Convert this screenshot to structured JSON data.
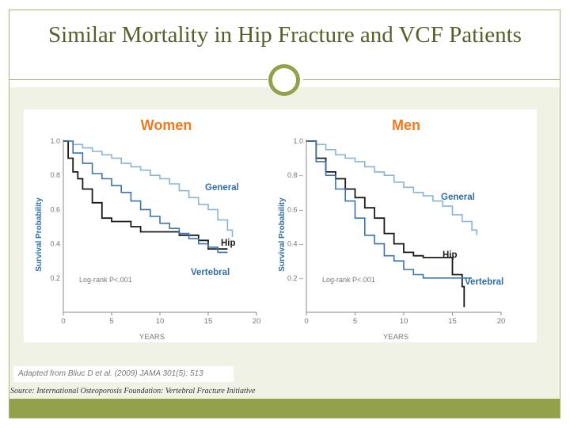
{
  "slide": {
    "title": "Similar Mortality in Hip Fracture and VCF Patients",
    "citation": "Adapted from Bliuc D et al. (2009) JAMA 301(5): 513",
    "source": "Source: International Osteoporosis Foundation: Vertebral Fracture Initiative"
  },
  "colors": {
    "olive": "#93a24a",
    "title": "#56602a",
    "panel_title": "#f07a1d",
    "general": "#8ab4d6",
    "vertebral": "#3b73b0",
    "hip": "#1a1a1a",
    "label_blue": "#2f6ea8"
  },
  "chart_data": [
    {
      "type": "line",
      "title": "Women",
      "xlabel": "YEARS",
      "ylabel": "Survival Probability",
      "xlim": [
        0,
        20
      ],
      "ylim": [
        0,
        1.0
      ],
      "xticks": [
        0,
        5,
        10,
        15,
        20
      ],
      "yticks": [
        0.2,
        0.4,
        0.6,
        0.8,
        1.0
      ],
      "ytick_labels": [
        "0.2",
        "0.4",
        "0.6",
        "0.8",
        "1.0"
      ],
      "annotation": "Log-rank P<.001",
      "series": [
        {
          "name": "General",
          "step": true,
          "x": [
            0,
            1,
            2,
            3,
            4,
            5,
            6,
            7,
            8,
            9,
            10,
            11,
            12,
            13,
            14,
            15,
            16,
            17,
            17.5
          ],
          "y": [
            1.0,
            0.98,
            0.96,
            0.94,
            0.92,
            0.9,
            0.87,
            0.85,
            0.83,
            0.8,
            0.78,
            0.75,
            0.71,
            0.67,
            0.63,
            0.6,
            0.54,
            0.48,
            0.44
          ]
        },
        {
          "name": "Hip",
          "step": true,
          "x": [
            0,
            0.5,
            1,
            1.5,
            2,
            3,
            4,
            5,
            6,
            7,
            8,
            9,
            10,
            11,
            12,
            13,
            14,
            15,
            16,
            17
          ],
          "y": [
            1.0,
            0.9,
            0.82,
            0.78,
            0.72,
            0.64,
            0.55,
            0.53,
            0.53,
            0.5,
            0.47,
            0.47,
            0.47,
            0.47,
            0.45,
            0.45,
            0.42,
            0.37,
            0.37,
            0.37
          ]
        },
        {
          "name": "Vertebral",
          "step": true,
          "x": [
            0,
            1,
            2,
            3,
            4,
            5,
            6,
            7,
            8,
            9,
            10,
            11,
            12,
            13,
            14,
            15,
            16,
            17
          ],
          "y": [
            1.0,
            0.93,
            0.87,
            0.81,
            0.78,
            0.74,
            0.7,
            0.65,
            0.6,
            0.56,
            0.52,
            0.49,
            0.46,
            0.43,
            0.4,
            0.38,
            0.35,
            0.35
          ]
        }
      ],
      "series_labels": [
        "General",
        "Hip",
        "Vertebral"
      ]
    },
    {
      "type": "line",
      "title": "Men",
      "xlabel": "YEARS",
      "ylabel": "Survival Probability",
      "xlim": [
        0,
        20
      ],
      "ylim": [
        0,
        1.0
      ],
      "xticks": [
        0,
        5,
        10,
        15,
        20
      ],
      "yticks": [
        0.2,
        0.4,
        0.6,
        0.8,
        1.0
      ],
      "ytick_labels": [
        "0.2 –",
        "0.4 –",
        "0.6 –",
        "0.8 –",
        "1.0"
      ],
      "annotation": "Log-rank P<.001",
      "series": [
        {
          "name": "General",
          "step": true,
          "x": [
            0,
            1,
            2,
            3,
            4,
            5,
            6,
            7,
            8,
            9,
            10,
            11,
            12,
            13,
            14,
            15,
            16,
            17,
            17.5
          ],
          "y": [
            1.0,
            0.98,
            0.95,
            0.92,
            0.9,
            0.88,
            0.85,
            0.82,
            0.8,
            0.76,
            0.73,
            0.7,
            0.68,
            0.65,
            0.62,
            0.57,
            0.53,
            0.48,
            0.45
          ]
        },
        {
          "name": "Hip",
          "step": true,
          "x": [
            0,
            1,
            2,
            3,
            4,
            5,
            6,
            7,
            8,
            9,
            10,
            11,
            12,
            13,
            14,
            15,
            16,
            16.2
          ],
          "y": [
            1.0,
            0.9,
            0.82,
            0.78,
            0.72,
            0.67,
            0.61,
            0.55,
            0.46,
            0.4,
            0.35,
            0.33,
            0.32,
            0.32,
            0.32,
            0.22,
            0.15,
            0.03
          ]
        },
        {
          "name": "Vertebral",
          "step": true,
          "x": [
            0,
            1,
            2,
            3,
            4,
            5,
            6,
            7,
            8,
            9,
            10,
            11,
            12,
            13,
            14,
            15,
            16,
            17
          ],
          "y": [
            1.0,
            0.88,
            0.8,
            0.72,
            0.65,
            0.55,
            0.45,
            0.4,
            0.33,
            0.3,
            0.25,
            0.22,
            0.2,
            0.2,
            0.2,
            0.2,
            0.2,
            0.2
          ]
        }
      ],
      "series_labels": [
        "General",
        "Hip",
        "Vertebral"
      ]
    }
  ]
}
